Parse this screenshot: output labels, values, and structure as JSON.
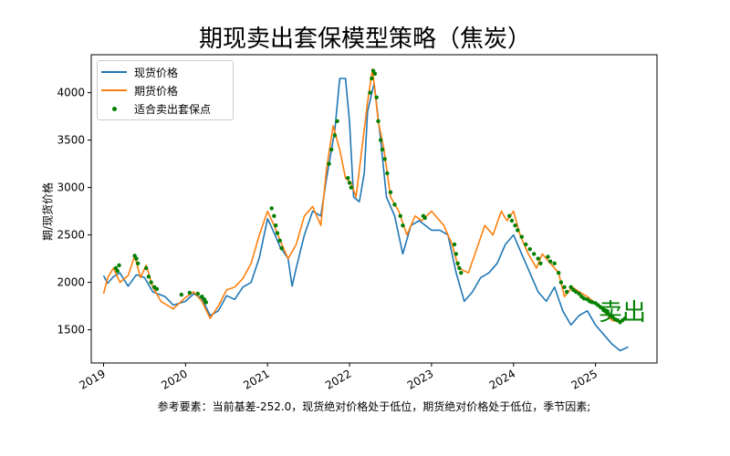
{
  "chart_data": {
    "type": "line",
    "title": "期现卖出套保模型策略（焦炭）",
    "ylabel": "期/现货价格",
    "xlabel": "",
    "ylim": [
      1150,
      4400
    ],
    "xlim": [
      2018.85,
      2025.75
    ],
    "yticks": [
      1500,
      2000,
      2500,
      3000,
      3500,
      4000
    ],
    "xticks": [
      2019,
      2020,
      2021,
      2022,
      2023,
      2024,
      2025
    ],
    "xtick_labels": [
      "2019",
      "2020",
      "2021",
      "2022",
      "2023",
      "2024",
      "2025"
    ],
    "legend_position": "top-left",
    "grid": false,
    "annotation": "卖出",
    "footnote": "参考要素：当前基差-252.0，现货绝对价格处于低位，期货绝对价格处于低位，季节因素;",
    "series": [
      {
        "name": "现货价格",
        "color": "#1f77b4",
        "points": [
          [
            2019.0,
            2070
          ],
          [
            2019.05,
            1990
          ],
          [
            2019.12,
            2060
          ],
          [
            2019.2,
            2100
          ],
          [
            2019.3,
            1960
          ],
          [
            2019.4,
            2080
          ],
          [
            2019.5,
            2050
          ],
          [
            2019.6,
            1900
          ],
          [
            2019.75,
            1850
          ],
          [
            2019.85,
            1760
          ],
          [
            2020.0,
            1800
          ],
          [
            2020.1,
            1880
          ],
          [
            2020.2,
            1830
          ],
          [
            2020.3,
            1650
          ],
          [
            2020.4,
            1700
          ],
          [
            2020.5,
            1860
          ],
          [
            2020.6,
            1820
          ],
          [
            2020.7,
            1950
          ],
          [
            2020.8,
            2000
          ],
          [
            2020.9,
            2260
          ],
          [
            2021.0,
            2670
          ],
          [
            2021.05,
            2580
          ],
          [
            2021.15,
            2380
          ],
          [
            2021.25,
            2250
          ],
          [
            2021.3,
            1960
          ],
          [
            2021.35,
            2150
          ],
          [
            2021.45,
            2500
          ],
          [
            2021.55,
            2750
          ],
          [
            2021.65,
            2700
          ],
          [
            2021.72,
            3100
          ],
          [
            2021.82,
            3600
          ],
          [
            2021.88,
            4150
          ],
          [
            2021.95,
            4150
          ],
          [
            2022.0,
            3700
          ],
          [
            2022.05,
            2900
          ],
          [
            2022.12,
            2850
          ],
          [
            2022.18,
            3150
          ],
          [
            2022.22,
            3800
          ],
          [
            2022.3,
            4100
          ],
          [
            2022.38,
            3500
          ],
          [
            2022.45,
            2900
          ],
          [
            2022.55,
            2700
          ],
          [
            2022.65,
            2300
          ],
          [
            2022.75,
            2600
          ],
          [
            2022.85,
            2650
          ],
          [
            2023.0,
            2550
          ],
          [
            2023.1,
            2550
          ],
          [
            2023.2,
            2500
          ],
          [
            2023.3,
            2100
          ],
          [
            2023.4,
            1800
          ],
          [
            2023.5,
            1900
          ],
          [
            2023.6,
            2050
          ],
          [
            2023.7,
            2100
          ],
          [
            2023.8,
            2200
          ],
          [
            2023.9,
            2400
          ],
          [
            2024.0,
            2500
          ],
          [
            2024.1,
            2300
          ],
          [
            2024.2,
            2100
          ],
          [
            2024.3,
            1900
          ],
          [
            2024.4,
            1800
          ],
          [
            2024.5,
            1950
          ],
          [
            2024.6,
            1700
          ],
          [
            2024.7,
            1550
          ],
          [
            2024.8,
            1650
          ],
          [
            2024.9,
            1700
          ],
          [
            2025.0,
            1550
          ],
          [
            2025.1,
            1450
          ],
          [
            2025.2,
            1350
          ],
          [
            2025.3,
            1280
          ],
          [
            2025.4,
            1320
          ]
        ]
      },
      {
        "name": "期货价格",
        "color": "#ff7f0e",
        "points": [
          [
            2019.0,
            1880
          ],
          [
            2019.05,
            2050
          ],
          [
            2019.12,
            2150
          ],
          [
            2019.2,
            2000
          ],
          [
            2019.3,
            2070
          ],
          [
            2019.38,
            2280
          ],
          [
            2019.45,
            2050
          ],
          [
            2019.52,
            2180
          ],
          [
            2019.6,
            1950
          ],
          [
            2019.7,
            1800
          ],
          [
            2019.85,
            1720
          ],
          [
            2020.0,
            1840
          ],
          [
            2020.1,
            1900
          ],
          [
            2020.2,
            1800
          ],
          [
            2020.3,
            1620
          ],
          [
            2020.4,
            1750
          ],
          [
            2020.5,
            1920
          ],
          [
            2020.6,
            1950
          ],
          [
            2020.7,
            2040
          ],
          [
            2020.8,
            2200
          ],
          [
            2020.9,
            2500
          ],
          [
            2021.0,
            2750
          ],
          [
            2021.08,
            2600
          ],
          [
            2021.15,
            2450
          ],
          [
            2021.25,
            2250
          ],
          [
            2021.35,
            2400
          ],
          [
            2021.45,
            2700
          ],
          [
            2021.55,
            2800
          ],
          [
            2021.65,
            2600
          ],
          [
            2021.72,
            3200
          ],
          [
            2021.8,
            3650
          ],
          [
            2021.88,
            3400
          ],
          [
            2021.95,
            3100
          ],
          [
            2022.02,
            3050
          ],
          [
            2022.08,
            2900
          ],
          [
            2022.15,
            3400
          ],
          [
            2022.22,
            3900
          ],
          [
            2022.28,
            4250
          ],
          [
            2022.35,
            3700
          ],
          [
            2022.42,
            3400
          ],
          [
            2022.5,
            2900
          ],
          [
            2022.6,
            2750
          ],
          [
            2022.7,
            2500
          ],
          [
            2022.8,
            2700
          ],
          [
            2022.88,
            2650
          ],
          [
            2023.0,
            2750
          ],
          [
            2023.15,
            2600
          ],
          [
            2023.25,
            2400
          ],
          [
            2023.33,
            2150
          ],
          [
            2023.45,
            2100
          ],
          [
            2023.55,
            2350
          ],
          [
            2023.65,
            2600
          ],
          [
            2023.75,
            2500
          ],
          [
            2023.85,
            2750
          ],
          [
            2023.92,
            2650
          ],
          [
            2024.0,
            2750
          ],
          [
            2024.08,
            2500
          ],
          [
            2024.18,
            2300
          ],
          [
            2024.28,
            2150
          ],
          [
            2024.35,
            2300
          ],
          [
            2024.45,
            2200
          ],
          [
            2024.55,
            2100
          ],
          [
            2024.62,
            1850
          ],
          [
            2024.72,
            1950
          ],
          [
            2024.8,
            1900
          ],
          [
            2024.9,
            1850
          ],
          [
            2025.0,
            1780
          ],
          [
            2025.1,
            1700
          ],
          [
            2025.2,
            1600
          ],
          [
            2025.3,
            1580
          ],
          [
            2025.38,
            1630
          ]
        ]
      },
      {
        "name": "适合卖出套保点",
        "color": "#008000",
        "kind": "markers",
        "points": [
          [
            2019.15,
            2150
          ],
          [
            2019.17,
            2120
          ],
          [
            2019.19,
            2180
          ],
          [
            2019.38,
            2280
          ],
          [
            2019.4,
            2250
          ],
          [
            2019.42,
            2200
          ],
          [
            2019.52,
            2150
          ],
          [
            2019.55,
            2060
          ],
          [
            2019.58,
            2000
          ],
          [
            2019.62,
            1950
          ],
          [
            2019.65,
            1930
          ],
          [
            2019.95,
            1870
          ],
          [
            2020.05,
            1890
          ],
          [
            2020.15,
            1880
          ],
          [
            2020.2,
            1850
          ],
          [
            2020.23,
            1820
          ],
          [
            2020.25,
            1790
          ],
          [
            2021.05,
            2780
          ],
          [
            2021.08,
            2700
          ],
          [
            2021.1,
            2600
          ],
          [
            2021.12,
            2520
          ],
          [
            2021.15,
            2440
          ],
          [
            2021.17,
            2360
          ],
          [
            2021.75,
            3250
          ],
          [
            2021.78,
            3400
          ],
          [
            2021.82,
            3550
          ],
          [
            2021.85,
            3700
          ],
          [
            2021.98,
            3100
          ],
          [
            2022.0,
            3050
          ],
          [
            2022.02,
            3000
          ],
          [
            2022.25,
            4000
          ],
          [
            2022.27,
            4150
          ],
          [
            2022.29,
            4230
          ],
          [
            2022.31,
            4200
          ],
          [
            2022.33,
            3950
          ],
          [
            2022.35,
            3700
          ],
          [
            2022.38,
            3500
          ],
          [
            2022.4,
            3400
          ],
          [
            2022.43,
            3300
          ],
          [
            2022.46,
            3150
          ],
          [
            2022.5,
            2950
          ],
          [
            2022.55,
            2820
          ],
          [
            2022.62,
            2700
          ],
          [
            2022.65,
            2600
          ],
          [
            2022.9,
            2700
          ],
          [
            2022.92,
            2680
          ],
          [
            2023.28,
            2400
          ],
          [
            2023.3,
            2300
          ],
          [
            2023.32,
            2200
          ],
          [
            2023.34,
            2150
          ],
          [
            2023.36,
            2100
          ],
          [
            2023.95,
            2700
          ],
          [
            2023.98,
            2650
          ],
          [
            2024.02,
            2600
          ],
          [
            2024.05,
            2550
          ],
          [
            2024.1,
            2480
          ],
          [
            2024.15,
            2400
          ],
          [
            2024.2,
            2350
          ],
          [
            2024.25,
            2300
          ],
          [
            2024.3,
            2250
          ],
          [
            2024.33,
            2200
          ],
          [
            2024.42,
            2270
          ],
          [
            2024.45,
            2220
          ],
          [
            2024.5,
            2200
          ],
          [
            2024.55,
            2100
          ],
          [
            2024.58,
            2000
          ],
          [
            2024.62,
            1950
          ],
          [
            2024.65,
            1900
          ],
          [
            2024.7,
            1950
          ],
          [
            2024.73,
            1920
          ],
          [
            2024.76,
            1900
          ],
          [
            2024.8,
            1880
          ],
          [
            2024.83,
            1850
          ],
          [
            2024.86,
            1830
          ],
          [
            2024.9,
            1820
          ],
          [
            2024.93,
            1800
          ],
          [
            2024.96,
            1790
          ],
          [
            2025.0,
            1780
          ],
          [
            2025.03,
            1760
          ],
          [
            2025.06,
            1740
          ],
          [
            2025.09,
            1720
          ],
          [
            2025.12,
            1700
          ],
          [
            2025.15,
            1680
          ],
          [
            2025.18,
            1650
          ],
          [
            2025.21,
            1630
          ],
          [
            2025.24,
            1610
          ],
          [
            2025.27,
            1600
          ],
          [
            2025.3,
            1580
          ],
          [
            2025.33,
            1600
          ],
          [
            2025.36,
            1620
          ]
        ]
      }
    ]
  }
}
